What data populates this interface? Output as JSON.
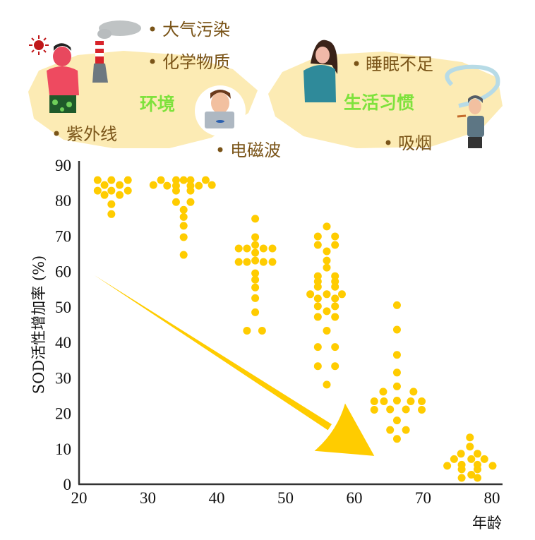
{
  "illustration": {
    "group1": {
      "title": "环境",
      "items": [
        "大气污染",
        "化学物质",
        "紫外线",
        "电磁波"
      ]
    },
    "group2": {
      "title": "生活习惯",
      "items": [
        "睡眠不足",
        "吸烟"
      ]
    },
    "colors": {
      "blob": "#fcebb4",
      "title": "#7ee23c",
      "label": "#7a5418"
    }
  },
  "chart_data": {
    "type": "scatter",
    "title": "",
    "xlabel": "年龄",
    "ylabel": "SOD活性增加率 (%)",
    "xlim": [
      20,
      80
    ],
    "ylim": [
      0,
      90
    ],
    "xticks": [
      "20",
      "30",
      "40",
      "50",
      "60",
      "70",
      "80"
    ],
    "yticks": [
      "0",
      "10",
      "20",
      "30",
      "40",
      "50",
      "60",
      "70",
      "80",
      "90"
    ],
    "grid": false,
    "color": "#ffcc00",
    "trend_arrow": {
      "from": [
        22.2,
        59
      ],
      "to": [
        62.9,
        8
      ]
    },
    "points": [
      [
        22.7,
        85.8
      ],
      [
        24.7,
        85.8
      ],
      [
        27.1,
        85.8
      ],
      [
        23.7,
        84.4
      ],
      [
        25.9,
        84.4
      ],
      [
        22.7,
        82.8
      ],
      [
        24.7,
        82.8
      ],
      [
        27.1,
        82.8
      ],
      [
        23.7,
        81.6
      ],
      [
        25.9,
        81.6
      ],
      [
        24.7,
        79.0
      ],
      [
        24.7,
        76.2
      ],
      [
        30.8,
        84.4
      ],
      [
        31.9,
        85.8
      ],
      [
        32.8,
        84.2
      ],
      [
        34.1,
        85.8
      ],
      [
        34.1,
        84.2
      ],
      [
        34.1,
        82.8
      ],
      [
        35.2,
        85.8
      ],
      [
        36.2,
        85.8
      ],
      [
        36.2,
        84.2
      ],
      [
        36.2,
        82.8
      ],
      [
        37.4,
        84.2
      ],
      [
        38.4,
        85.8
      ],
      [
        39.3,
        84.4
      ],
      [
        34.1,
        79.6
      ],
      [
        36.2,
        79.6
      ],
      [
        35.2,
        77.4
      ],
      [
        35.2,
        75.4
      ],
      [
        35.2,
        72.9
      ],
      [
        35.2,
        69.7
      ],
      [
        35.2,
        64.7
      ],
      [
        45.6,
        74.9
      ],
      [
        45.6,
        69.7
      ],
      [
        45.6,
        67.5
      ],
      [
        43.2,
        66.5
      ],
      [
        44.4,
        66.5
      ],
      [
        46.8,
        66.5
      ],
      [
        48.1,
        66.5
      ],
      [
        45.6,
        65.3
      ],
      [
        43.2,
        62.7
      ],
      [
        44.4,
        62.7
      ],
      [
        45.6,
        63.1
      ],
      [
        46.8,
        62.7
      ],
      [
        48.1,
        62.7
      ],
      [
        45.6,
        59.5
      ],
      [
        45.6,
        57.7
      ],
      [
        45.6,
        55.5
      ],
      [
        45.6,
        52.5
      ],
      [
        45.6,
        48.5
      ],
      [
        44.4,
        43.3
      ],
      [
        46.6,
        43.3
      ],
      [
        56.0,
        72.7
      ],
      [
        54.7,
        69.9
      ],
      [
        57.2,
        69.9
      ],
      [
        54.7,
        67.5
      ],
      [
        57.2,
        67.5
      ],
      [
        56.0,
        65.7
      ],
      [
        56.0,
        63.1
      ],
      [
        56.0,
        61.1
      ],
      [
        54.7,
        58.7
      ],
      [
        57.2,
        58.7
      ],
      [
        54.7,
        57.2
      ],
      [
        57.2,
        57.2
      ],
      [
        54.7,
        55.7
      ],
      [
        57.2,
        55.7
      ],
      [
        53.6,
        53.6
      ],
      [
        56.0,
        53.6
      ],
      [
        58.2,
        53.6
      ],
      [
        54.7,
        52.4
      ],
      [
        57.2,
        52.4
      ],
      [
        54.7,
        50.2
      ],
      [
        57.2,
        50.2
      ],
      [
        56.0,
        48.8
      ],
      [
        54.7,
        47.2
      ],
      [
        57.2,
        47.2
      ],
      [
        56.0,
        43.3
      ],
      [
        54.7,
        38.7
      ],
      [
        57.2,
        38.7
      ],
      [
        54.7,
        33.3
      ],
      [
        57.2,
        33.3
      ],
      [
        56.0,
        28.1
      ],
      [
        66.2,
        50.5
      ],
      [
        66.2,
        43.6
      ],
      [
        66.2,
        36.5
      ],
      [
        66.2,
        31.5
      ],
      [
        66.2,
        27.6
      ],
      [
        64.2,
        26.1
      ],
      [
        68.6,
        26.1
      ],
      [
        62.9,
        23.4
      ],
      [
        64.3,
        23.4
      ],
      [
        66.2,
        23.6
      ],
      [
        68.2,
        23.4
      ],
      [
        69.8,
        23.4
      ],
      [
        62.9,
        21.0
      ],
      [
        65.2,
        21.1
      ],
      [
        67.5,
        21.1
      ],
      [
        69.8,
        21.0
      ],
      [
        66.2,
        18.0
      ],
      [
        65.2,
        15.3
      ],
      [
        67.5,
        15.3
      ],
      [
        66.2,
        12.8
      ],
      [
        76.8,
        13.2
      ],
      [
        76.8,
        10.6
      ],
      [
        75.5,
        8.6
      ],
      [
        77.9,
        8.6
      ],
      [
        74.5,
        7.1
      ],
      [
        77.0,
        7.1
      ],
      [
        78.9,
        7.1
      ],
      [
        73.5,
        5.2
      ],
      [
        75.6,
        5.5
      ],
      [
        77.9,
        5.5
      ],
      [
        80.1,
        5.2
      ],
      [
        75.6,
        4.2
      ],
      [
        77.9,
        4.2
      ],
      [
        75.6,
        1.8
      ],
      [
        77.0,
        2.7
      ],
      [
        77.9,
        1.8
      ]
    ]
  }
}
